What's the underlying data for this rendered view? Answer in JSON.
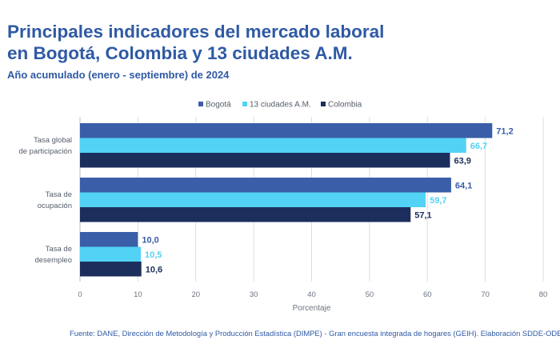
{
  "title_line1": "Principales indicadores del mercado laboral",
  "title_line2": "en Bogotá, Colombia y 13 ciudades A.M.",
  "subtitle": "Año acumulado (enero - septiembre) de 2024",
  "source": "Fuente: DANE, Dirección de Metodología y Producción Estadística (DIMPE) - Gran encuesta integrada de hogares (GEIH). Elaboración SDDE-ODEB.",
  "colors": {
    "title": "#2f5aa4",
    "bogota": "#3a5ea8",
    "ciudades": "#52d2f5",
    "colombia": "#1c2e5c",
    "grid": "#d9dde3"
  },
  "chart_data": {
    "type": "bar",
    "orientation": "horizontal",
    "categories": [
      [
        "Tasa global",
        "de participación"
      ],
      [
        "Tasa de",
        "ocupación"
      ],
      [
        "Tasa de",
        "desempleo"
      ]
    ],
    "series": [
      {
        "name": "Bogotá",
        "values": [
          71.2,
          64.1,
          10.0
        ],
        "labels": [
          "71,2",
          "64,1",
          "10,0"
        ],
        "color": "#3a5ea8"
      },
      {
        "name": "13 ciudades A.M.",
        "values": [
          66.7,
          59.7,
          10.5
        ],
        "labels": [
          "66,7",
          "59,7",
          "10,5"
        ],
        "color": "#52d2f5"
      },
      {
        "name": "Colombia",
        "values": [
          63.9,
          57.1,
          10.6
        ],
        "labels": [
          "63,9",
          "57,1",
          "10,6"
        ],
        "color": "#1c2e5c"
      }
    ],
    "xlabel": "Porcentaje",
    "ylabel": "",
    "xlim": [
      0,
      80
    ],
    "xticks": [
      0,
      10,
      20,
      30,
      40,
      50,
      60,
      70,
      80
    ],
    "grid": true,
    "legend_position": "top-right"
  }
}
